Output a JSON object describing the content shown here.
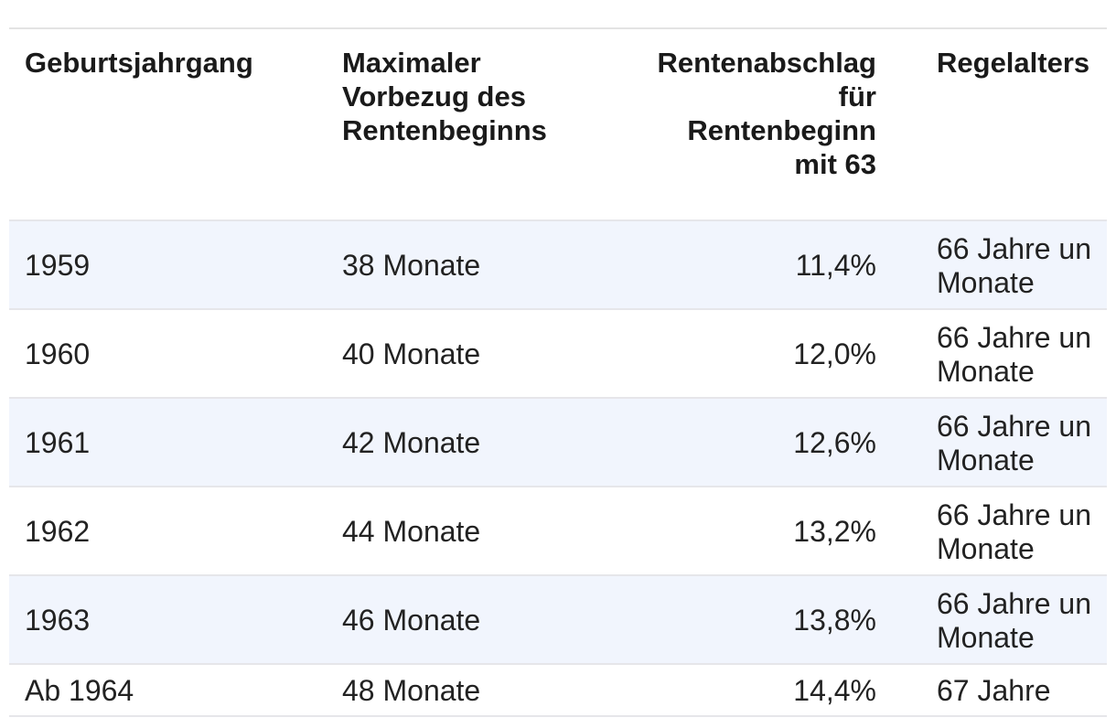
{
  "table": {
    "header": [
      "Geburtsjahrgang",
      "Maximaler\nVorbezug des\nRentenbeginns",
      "Rentenabschlag\nfür\nRentenbeginn\nmit 63",
      "Regelalters"
    ],
    "rows": [
      [
        "1959",
        "38 Monate",
        "11,4%",
        "66 Jahre un\nMonate"
      ],
      [
        "1960",
        "40 Monate",
        "12,0%",
        "66 Jahre un\nMonate"
      ],
      [
        "1961",
        "42 Monate",
        "12,6%",
        "66 Jahre un\nMonate"
      ],
      [
        "1962",
        "44 Monate",
        "13,2%",
        "66 Jahre un\nMonate"
      ],
      [
        "1963",
        "46 Monate",
        "13,8%",
        "66 Jahre un\nMonate"
      ],
      [
        "Ab 1964",
        "48 Monate",
        "14,4%",
        "67 Jahre"
      ]
    ]
  }
}
